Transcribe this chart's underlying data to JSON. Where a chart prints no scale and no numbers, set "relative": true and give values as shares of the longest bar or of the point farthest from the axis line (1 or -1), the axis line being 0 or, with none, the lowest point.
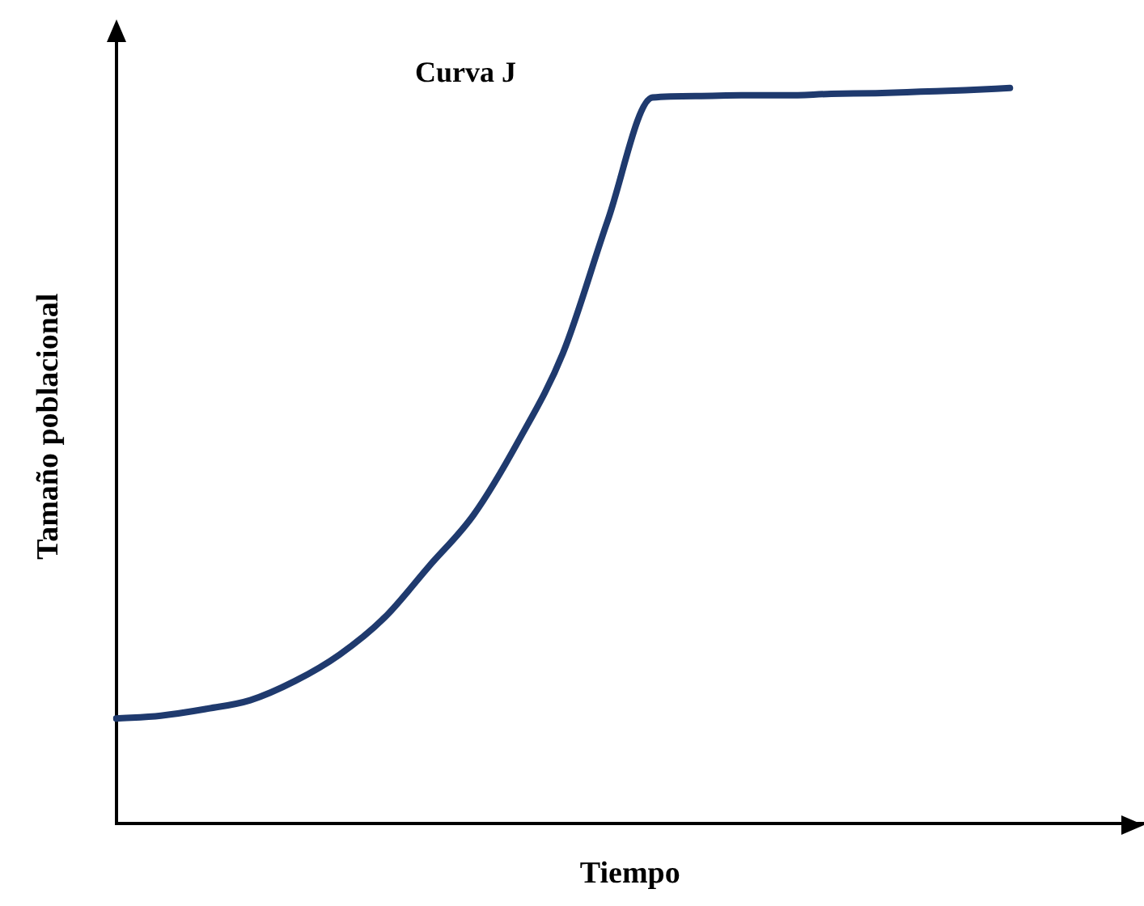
{
  "chart_data": {
    "type": "line",
    "title": "Curva J",
    "xlabel": "Tiempo",
    "ylabel": "Tamaño poblacional",
    "relative": true,
    "grid": false,
    "legend": false,
    "marker": "none",
    "line_style": "solid",
    "categories": [
      null,
      null,
      null,
      null,
      null,
      null,
      null,
      null,
      null,
      null,
      null,
      null,
      null,
      null,
      null,
      null,
      null,
      null,
      null,
      null,
      null,
      null,
      null,
      null
    ],
    "series": [
      {
        "color": "#1f3a6e",
        "values": [
          0.143,
          0.147,
          0.156,
          0.168,
          0.194,
          0.23,
          0.28,
          0.35,
          0.42,
          0.52,
          0.64,
          0.82,
          0.987,
          0.989,
          0.99,
          0.99,
          0.992,
          0.993,
          0.995,
          0.997,
          1,
          null,
          null,
          null
        ]
      }
    ]
  }
}
